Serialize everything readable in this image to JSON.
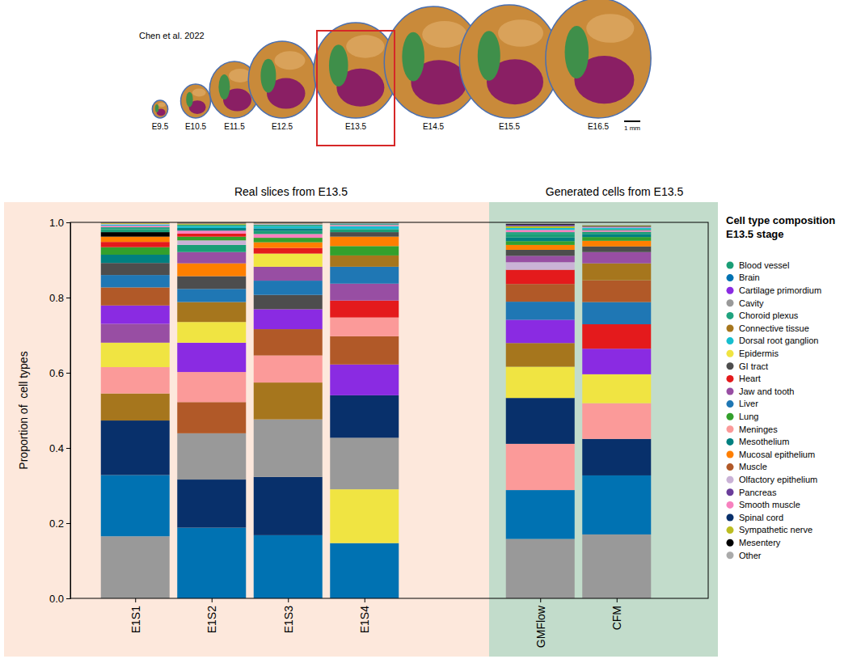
{
  "figure_header": {
    "credit": "Chen et al. 2022",
    "stages": [
      "E9.5",
      "E10.5",
      "E11.5",
      "E12.5",
      "E13.5",
      "E14.5",
      "E15.5",
      "E16.5"
    ],
    "highlighted_stage": "E13.5",
    "scale_bar": "1 mm"
  },
  "chart_data": {
    "type": "bar",
    "stacked": true,
    "group_titles": [
      "Real slices from E13.5",
      "Generated cells from E13.5"
    ],
    "y_label": "Proportion of  cell types",
    "legend_title": [
      "Cell type composition",
      "E13.5 stage"
    ],
    "legend": "right",
    "categories": [
      "E1S1",
      "E1S2",
      "E1S3",
      "E1S4",
      "GMFlow",
      "CFM"
    ],
    "ylim": [
      0,
      1
    ],
    "yticks": [
      {
        "value": 0,
        "label": "0.0"
      },
      0.2,
      0.4,
      0.6,
      0.8,
      {
        "value": 1,
        "label": "1.0"
      }
    ],
    "series": [
      {
        "name": "Blood vessel",
        "color": "#1a9e76",
        "values": [
          0.008,
          0.019,
          0.008,
          0.008,
          0.008,
          0.006
        ]
      },
      {
        "name": "Brain",
        "color": "#0072b2",
        "values": [
          0.163,
          0.188,
          0.168,
          0.147,
          0.13,
          0.157
        ]
      },
      {
        "name": "Cartilage primordium",
        "color": "#8a2be2",
        "values": [
          0.049,
          0.078,
          0.053,
          0.082,
          0.062,
          0.068
        ]
      },
      {
        "name": "Cavity",
        "color": "#999999",
        "values": [
          0.165,
          0.123,
          0.153,
          0.137,
          0.158,
          0.17
        ]
      },
      {
        "name": "Choroid plexus",
        "color": "#20a37f",
        "values": [
          0.005,
          0.004,
          0.004,
          0.002,
          0.006,
          0.003
        ]
      },
      {
        "name": "Connective tissue",
        "color": "#a6761d",
        "values": [
          0.072,
          0.053,
          0.098,
          0.03,
          0.063,
          0.045
        ]
      },
      {
        "name": "Dorsal root ganglion",
        "color": "#17becf",
        "values": [
          0.003,
          0.005,
          0.006,
          0.008,
          0.005,
          0.003
        ]
      },
      {
        "name": "Epidermis",
        "color": "#f0e442",
        "values": [
          0.065,
          0.055,
          0.035,
          0.143,
          0.083,
          0.077
        ]
      },
      {
        "name": "GI tract",
        "color": "#4d4d4d",
        "values": [
          0.032,
          0.034,
          0.038,
          0.012,
          0.016,
          0.015
        ]
      },
      {
        "name": "Heart",
        "color": "#e41a1c",
        "values": [
          0.014,
          0.008,
          0.015,
          0.045,
          0.038,
          0.065
        ]
      },
      {
        "name": "Jaw and tooth",
        "color": "#984ea3",
        "values": [
          0.05,
          0.03,
          0.037,
          0.045,
          0.017,
          0.03
        ]
      },
      {
        "name": "Liver",
        "color": "#1f77b4",
        "values": [
          0.033,
          0.035,
          0.038,
          0.045,
          0.048,
          0.059
        ]
      },
      {
        "name": "Lung",
        "color": "#33a02c",
        "values": [
          0.02,
          0.01,
          0.012,
          0.025,
          0.01,
          0.01
        ]
      },
      {
        "name": "Meninges",
        "color": "#fb9a99",
        "values": [
          0.07,
          0.08,
          0.072,
          0.05,
          0.123,
          0.095
        ]
      },
      {
        "name": "Mesothelium",
        "color": "#008080",
        "values": [
          0.022,
          0.007,
          0.007,
          0.002,
          0.01,
          0.008
        ]
      },
      {
        "name": "Mucosal epithelium",
        "color": "#ff7f00",
        "values": [
          0.014,
          0.034,
          0.015,
          0.025,
          0.013,
          0.015
        ]
      },
      {
        "name": "Muscle",
        "color": "#b15928",
        "values": [
          0.048,
          0.083,
          0.07,
          0.075,
          0.047,
          0.058
        ]
      },
      {
        "name": "Olfactory epithelium",
        "color": "#cab2d6",
        "values": [
          0.002,
          0.012,
          0.002,
          0.001,
          0.02,
          0.002
        ]
      },
      {
        "name": "Pancreas",
        "color": "#6a3d9a",
        "values": [
          0.001,
          0.001,
          0.001,
          0.001,
          0.004,
          0.002
        ]
      },
      {
        "name": "Smooth muscle",
        "color": "#f781bf",
        "values": [
          0.004,
          0.008,
          0.01,
          0.003,
          0.006,
          0.004
        ]
      },
      {
        "name": "Spinal cord",
        "color": "#08306b",
        "values": [
          0.145,
          0.128,
          0.155,
          0.113,
          0.122,
          0.097
        ]
      },
      {
        "name": "Sympathetic nerve",
        "color": "#bcbd22",
        "values": [
          0.002,
          0.003,
          0.001,
          0.001,
          0.005,
          0.002
        ]
      },
      {
        "name": "Mesentery",
        "color": "#000000",
        "values": [
          0.012,
          0.001,
          0.001,
          0,
          0.002,
          0.001
        ]
      },
      {
        "name": "Other",
        "color": "#aaaaaa",
        "values": [
          0.001,
          0.001,
          0.001,
          0,
          0.002,
          0.001
        ]
      }
    ]
  }
}
